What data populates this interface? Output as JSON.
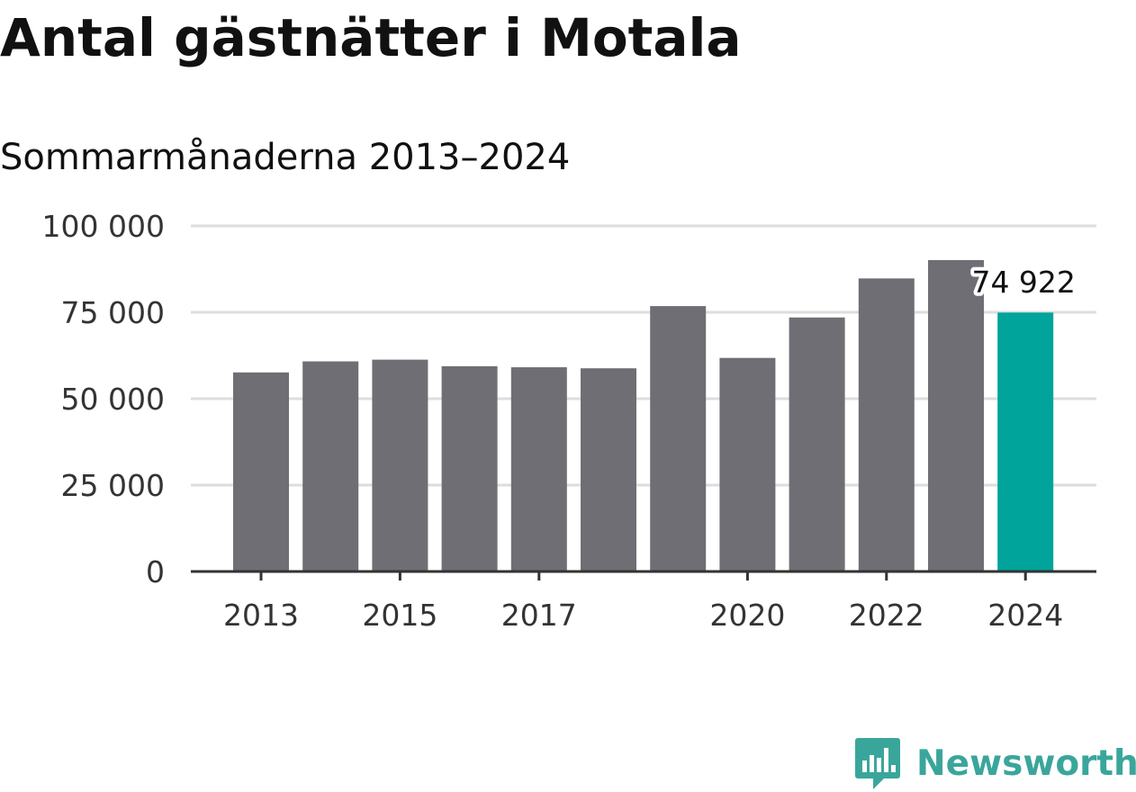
{
  "title": "Antal gästnätter i Motala",
  "subtitle": "Sommarmånaderna 2013–2024",
  "brand": {
    "name": "Newsworthy",
    "icon": "newsworthy-logo-icon",
    "color": "#3aa69b"
  },
  "colors": {
    "bar": "#6f6e75",
    "highlight": "#00a49a",
    "grid": "#dddddd",
    "axis": "#333333"
  },
  "chart_data": {
    "type": "bar",
    "title": "Antal gästnätter i Motala",
    "subtitle": "Sommarmånaderna 2013–2024",
    "xlabel": "",
    "ylabel": "",
    "categories": [
      "2013",
      "2014",
      "2015",
      "2016",
      "2017",
      "2018",
      "2019",
      "2020",
      "2021",
      "2022",
      "2023",
      "2024"
    ],
    "values": [
      57600,
      60800,
      61300,
      59400,
      59100,
      58800,
      76800,
      61800,
      73500,
      84800,
      90100,
      74922
    ],
    "highlight_index": 11,
    "ylim": [
      0,
      100000
    ],
    "yticks": [
      0,
      25000,
      50000,
      75000,
      100000
    ],
    "ytick_labels": [
      "0",
      "25 000",
      "50 000",
      "75 000",
      "100 000"
    ],
    "xtick_labels": [
      "2013",
      "2015",
      "2017",
      "2020",
      "2022",
      "2024"
    ],
    "annotations": [
      {
        "category": "2024",
        "text": "74 922"
      }
    ],
    "grid": true,
    "legend": "none"
  }
}
